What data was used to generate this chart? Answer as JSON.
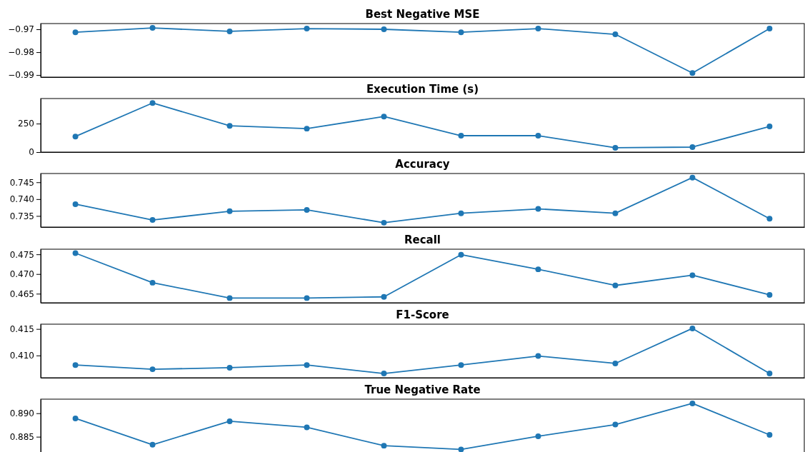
{
  "chart_data": [
    {
      "type": "line",
      "title": "Best Negative MSE",
      "categories": [
        null,
        null,
        null,
        null,
        null,
        null,
        null,
        null,
        null,
        null
      ],
      "series": [
        {
          "color": "#1f77b4",
          "values": [
            -0.9713,
            -0.9694,
            -0.9709,
            -0.9697,
            -0.97,
            -0.9713,
            -0.9697,
            -0.9722,
            -0.9891,
            -0.9697
          ]
        }
      ],
      "marker": "circle",
      "line_style": "solid",
      "ylim": [
        -0.9909,
        -0.9675
      ],
      "yticks": [
        -0.99,
        -0.98,
        -0.97
      ],
      "tick_labels": "y",
      "grid": false
    },
    {
      "type": "line",
      "title": "Execution Time (s)",
      "categories": [
        null,
        null,
        null,
        null,
        null,
        null,
        null,
        null,
        null,
        null
      ],
      "series": [
        {
          "color": "#1f77b4",
          "values": [
            137,
            431,
            231,
            206,
            312,
            144,
            144,
            38,
            44,
            225
          ]
        }
      ],
      "marker": "circle",
      "line_style": "solid",
      "ylim": [
        0,
        470
      ],
      "yticks": [
        0,
        250
      ],
      "tick_labels": "y",
      "grid": false
    },
    {
      "type": "line",
      "title": "Accuracy",
      "categories": [
        null,
        null,
        null,
        null,
        null,
        null,
        null,
        null,
        null,
        null
      ],
      "series": [
        {
          "color": "#1f77b4",
          "values": [
            0.7385,
            0.7338,
            0.7364,
            0.7368,
            0.733,
            0.7358,
            0.7371,
            0.7358,
            0.7464,
            0.7342
          ]
        }
      ],
      "marker": "circle",
      "line_style": "solid",
      "ylim": [
        0.7317,
        0.7476
      ],
      "yticks": [
        {
          "value": 0.735,
          "label": "0.735"
        },
        {
          "value": 0.74,
          "label": "0.740"
        },
        {
          "value": 0.745,
          "label": "0.745"
        }
      ],
      "tick_labels": "y",
      "grid": false
    },
    {
      "type": "line",
      "title": "Recall",
      "categories": [
        null,
        null,
        null,
        null,
        null,
        null,
        null,
        null,
        null,
        null
      ],
      "series": [
        {
          "color": "#1f77b4",
          "values": [
            0.4753,
            0.4678,
            0.4639,
            0.4639,
            0.4642,
            0.4749,
            0.4712,
            0.4671,
            0.4697,
            0.4647
          ]
        }
      ],
      "marker": "circle",
      "line_style": "solid",
      "ylim": [
        0.4627,
        0.4763
      ],
      "yticks": [
        {
          "value": 0.465,
          "label": "0.465"
        },
        {
          "value": 0.47,
          "label": "0.470"
        },
        {
          "value": 0.475,
          "label": "0.475"
        }
      ],
      "tick_labels": "y",
      "grid": false
    },
    {
      "type": "line",
      "title": "F1-Score",
      "categories": [
        null,
        null,
        null,
        null,
        null,
        null,
        null,
        null,
        null,
        null
      ],
      "series": [
        {
          "color": "#1f77b4",
          "values": [
            0.4082,
            0.4074,
            0.4077,
            0.4082,
            0.4066,
            0.4082,
            0.4099,
            0.4085,
            0.4151,
            0.4066
          ]
        }
      ],
      "marker": "circle",
      "line_style": "solid",
      "ylim": [
        0.4058,
        0.4159
      ],
      "yticks": [
        {
          "value": 0.41,
          "label": "0.410"
        },
        {
          "value": 0.415,
          "label": "0.415"
        }
      ],
      "tick_labels": "y",
      "grid": false
    },
    {
      "type": "line",
      "title": "True Negative Rate",
      "categories": [
        null,
        null,
        null,
        null,
        null,
        null,
        null,
        null,
        null,
        null
      ],
      "series": [
        {
          "color": "#1f77b4",
          "values": [
            0.8889,
            0.8833,
            0.8883,
            0.887,
            0.8831,
            0.8823,
            0.8851,
            0.8876,
            0.8921,
            0.8854
          ]
        }
      ],
      "marker": "circle",
      "line_style": "solid",
      "ylim": [
        0.8816,
        0.893
      ],
      "yticks": [
        {
          "value": 0.885,
          "label": "0.885"
        },
        {
          "value": 0.89,
          "label": "0.890"
        }
      ],
      "tick_labels": "y",
      "grid": false
    }
  ]
}
